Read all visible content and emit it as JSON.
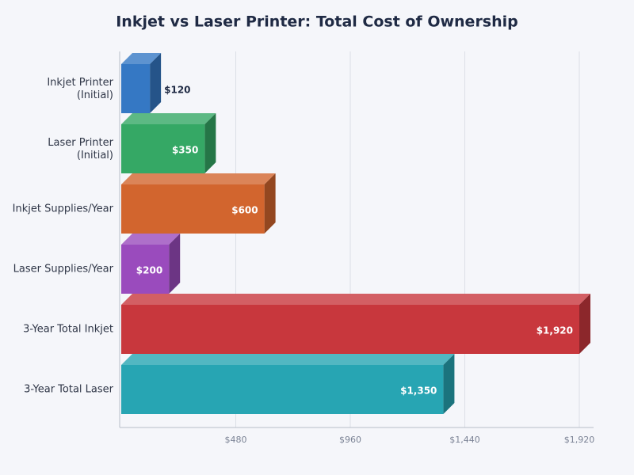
{
  "chart_data": {
    "type": "bar3d",
    "orientation": "horizontal",
    "title": "Inkjet vs Laser Printer: Total Cost of Ownership",
    "categories": [
      "Inkjet Printer (Initial)",
      "Laser Printer (Initial)",
      "Inkjet Supplies/Year",
      "Laser Supplies/Year",
      "3-Year Total Inkjet",
      "3-Year Total Laser"
    ],
    "values": [
      120,
      350,
      600,
      200,
      1920,
      1350
    ],
    "value_labels": [
      "$120",
      "$350",
      "$600",
      "$200",
      "$1,920",
      "$1,350"
    ],
    "colors": [
      "#3578c4",
      "#35a865",
      "#d2652e",
      "#9a4bbd",
      "#c8373d",
      "#27a5b3"
    ],
    "xlim": [
      0,
      1920
    ],
    "xticks": [
      {
        "value": 480,
        "label": "$480"
      },
      {
        "value": 960,
        "label": "$960"
      },
      {
        "value": 1440,
        "label": "$1,440"
      },
      {
        "value": 1920,
        "label": "$1,920"
      }
    ],
    "grid": true
  }
}
